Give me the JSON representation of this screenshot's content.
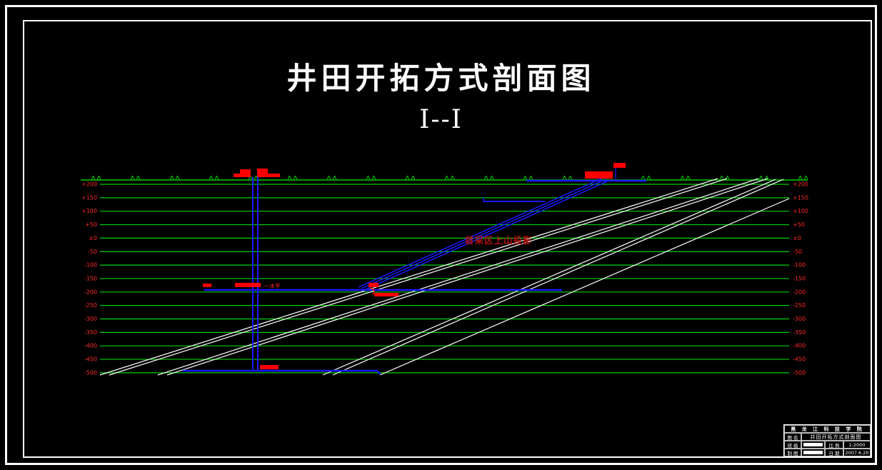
{
  "title": {
    "main": "井田开拓方式剖面图",
    "section_mark": "I--I"
  },
  "section": {
    "elevations": [
      "+200",
      "+150",
      "+100",
      "+50",
      "±0",
      "-50",
      "-100",
      "-150",
      "-200",
      "-250",
      "-300",
      "-350",
      "-400",
      "-450",
      "-500"
    ],
    "annotations": {
      "rise_projection": "首采区上山投影",
      "level_one": "一水平"
    }
  },
  "title_block": {
    "institution": "黑 龙 江 科 技 学 院",
    "drawing_name_label": "图 名",
    "drawing_name": "井田开拓方式剖面图",
    "class_label": "班 级",
    "scale_label": "比 例",
    "scale_value": "1:2000",
    "drafter_label": "制 图",
    "date_label": "日 期",
    "date_value": "2007.6.20"
  },
  "colors": {
    "strata_green": "#00d000",
    "working_blue": "#1a1aff",
    "seam_white": "#ffffff",
    "label_red": "#ff2a2a",
    "annotation_red": "#b01010",
    "structure_red": "#ff0000"
  }
}
